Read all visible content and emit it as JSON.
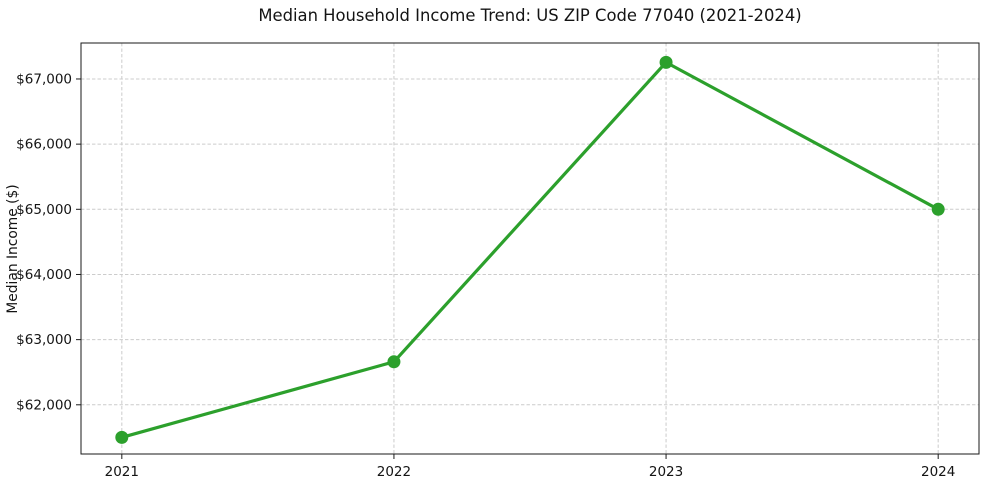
{
  "chart_data": {
    "type": "line",
    "title": "Median Household Income Trend: US ZIP Code 77040 (2021-2024)",
    "xlabel": "",
    "ylabel": "Median Income ($)",
    "x": [
      2021,
      2022,
      2023,
      2024
    ],
    "x_tick_labels": [
      "2021",
      "2022",
      "2023",
      "2024"
    ],
    "series": [
      {
        "name": "Median household income",
        "values": [
          61500,
          62660,
          67255,
          65000
        ]
      }
    ],
    "y_ticks": [
      62000,
      63000,
      64000,
      65000,
      66000,
      67000
    ],
    "y_tick_labels": [
      "$62,000",
      "$63,000",
      "$64,000",
      "$65,000",
      "$66,000",
      "$67,000"
    ],
    "xlim": [
      2020.85,
      2024.15
    ],
    "ylim": [
      61245,
      67552
    ],
    "grid": true,
    "grid_style": "dashed",
    "grid_color": "#cccccc",
    "line_color": "#2ca02c",
    "marker": "circle",
    "marker_radius": 6.5,
    "legend_position": "none",
    "background": "#ffffff"
  }
}
